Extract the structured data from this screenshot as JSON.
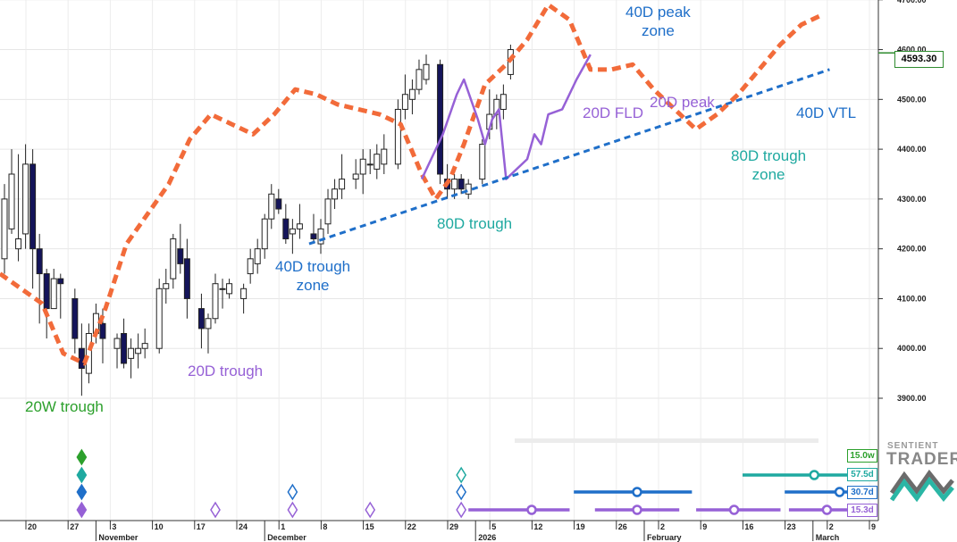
{
  "chart_data": {
    "type": "candlestick",
    "price_axis": {
      "ticks": [
        3900,
        4000,
        4100,
        4200,
        4300,
        4400,
        4500,
        4600,
        4700
      ],
      "tick_labels": [
        "3900.00",
        "4000.00",
        "4100.00",
        "4200.00",
        "4300.00",
        "4400.00",
        "4500.00",
        "4600.00",
        "4700.00"
      ],
      "ylim": [
        3840,
        4745
      ],
      "last_price_label": "4593.30",
      "last_price": 4593.3
    },
    "time_axis": {
      "day_ticks": [
        "20",
        "27",
        "3",
        "10",
        "17",
        "24",
        "1",
        "8",
        "15",
        "22",
        "29",
        "5",
        "12",
        "19",
        "26",
        "2",
        "9",
        "16",
        "23",
        "2",
        "9"
      ],
      "month_labels": [
        "November",
        "December",
        "2026",
        "February",
        "March"
      ],
      "month_start_indices": [
        2,
        6,
        11,
        15,
        19
      ]
    },
    "candles": [
      {
        "x": 0.0,
        "o": 4180,
        "h": 4330,
        "l": 4150,
        "c": 4300
      },
      {
        "x": 0.17,
        "o": 4240,
        "h": 4400,
        "l": 4230,
        "c": 4350
      },
      {
        "x": 0.33,
        "o": 4200,
        "h": 4390,
        "l": 4175,
        "c": 4220
      },
      {
        "x": 0.5,
        "o": 4230,
        "h": 4410,
        "l": 4200,
        "c": 4370
      },
      {
        "x": 0.67,
        "o": 4370,
        "h": 4400,
        "l": 4120,
        "c": 4200
      },
      {
        "x": 0.83,
        "o": 4200,
        "h": 4230,
        "l": 4050,
        "c": 4150
      },
      {
        "x": 1.0,
        "o": 4150,
        "h": 4160,
        "l": 4020,
        "c": 4080
      },
      {
        "x": 1.17,
        "o": 4080,
        "h": 4160,
        "l": 4080,
        "c": 4140
      },
      {
        "x": 1.33,
        "o": 4140,
        "h": 4150,
        "l": 4060,
        "c": 4130
      },
      {
        "x": 1.67,
        "o": 4100,
        "h": 4120,
        "l": 3990,
        "c": 4020
      },
      {
        "x": 1.83,
        "o": 4000,
        "h": 4050,
        "l": 3905,
        "c": 3960
      },
      {
        "x": 2.0,
        "o": 3950,
        "h": 4050,
        "l": 3930,
        "c": 4030
      },
      {
        "x": 2.17,
        "o": 4030,
        "h": 4090,
        "l": 4010,
        "c": 4070
      },
      {
        "x": 2.33,
        "o": 4050,
        "h": 4080,
        "l": 3970,
        "c": 4020
      },
      {
        "x": 2.67,
        "o": 4000,
        "h": 4030,
        "l": 3960,
        "c": 4020
      },
      {
        "x": 2.83,
        "o": 4030,
        "h": 4060,
        "l": 3960,
        "c": 3970
      },
      {
        "x": 3.0,
        "o": 3980,
        "h": 4020,
        "l": 3940,
        "c": 4000
      },
      {
        "x": 3.17,
        "o": 3990,
        "h": 4030,
        "l": 3960,
        "c": 4000
      },
      {
        "x": 3.33,
        "o": 4000,
        "h": 4040,
        "l": 3980,
        "c": 4010
      },
      {
        "x": 3.67,
        "o": 4000,
        "h": 4140,
        "l": 3990,
        "c": 4120
      },
      {
        "x": 3.83,
        "o": 4120,
        "h": 4160,
        "l": 4090,
        "c": 4130
      },
      {
        "x": 4.0,
        "o": 4140,
        "h": 4230,
        "l": 4120,
        "c": 4220
      },
      {
        "x": 4.17,
        "o": 4200,
        "h": 4250,
        "l": 4150,
        "c": 4170
      },
      {
        "x": 4.33,
        "o": 4180,
        "h": 4220,
        "l": 4060,
        "c": 4100
      },
      {
        "x": 4.67,
        "o": 4080,
        "h": 4110,
        "l": 4000,
        "c": 4040
      },
      {
        "x": 4.83,
        "o": 4040,
        "h": 4070,
        "l": 3990,
        "c": 4060
      },
      {
        "x": 5.0,
        "o": 4060,
        "h": 4150,
        "l": 4050,
        "c": 4130
      },
      {
        "x": 5.17,
        "o": 4120,
        "h": 4140,
        "l": 4080,
        "c": 4120
      },
      {
        "x": 5.33,
        "o": 4110,
        "h": 4140,
        "l": 4100,
        "c": 4130
      },
      {
        "x": 5.67,
        "o": 4100,
        "h": 4130,
        "l": 4070,
        "c": 4120
      },
      {
        "x": 5.83,
        "o": 4150,
        "h": 4200,
        "l": 4130,
        "c": 4180
      },
      {
        "x": 6.0,
        "o": 4170,
        "h": 4220,
        "l": 4150,
        "c": 4200
      },
      {
        "x": 6.17,
        "o": 4200,
        "h": 4270,
        "l": 4180,
        "c": 4260
      },
      {
        "x": 6.33,
        "o": 4260,
        "h": 4330,
        "l": 4240,
        "c": 4310
      },
      {
        "x": 6.5,
        "o": 4300,
        "h": 4320,
        "l": 4270,
        "c": 4280
      },
      {
        "x": 6.67,
        "o": 4260,
        "h": 4290,
        "l": 4210,
        "c": 4220
      },
      {
        "x": 6.83,
        "o": 4230,
        "h": 4260,
        "l": 4190,
        "c": 4240
      },
      {
        "x": 7.0,
        "o": 4240,
        "h": 4290,
        "l": 4220,
        "c": 4250
      },
      {
        "x": 7.33,
        "o": 4230,
        "h": 4270,
        "l": 4210,
        "c": 4220
      },
      {
        "x": 7.5,
        "o": 4210,
        "h": 4260,
        "l": 4190,
        "c": 4240
      },
      {
        "x": 7.67,
        "o": 4250,
        "h": 4320,
        "l": 4230,
        "c": 4300
      },
      {
        "x": 7.83,
        "o": 4300,
        "h": 4340,
        "l": 4280,
        "c": 4320
      },
      {
        "x": 8.0,
        "o": 4320,
        "h": 4390,
        "l": 4300,
        "c": 4340
      },
      {
        "x": 8.33,
        "o": 4340,
        "h": 4380,
        "l": 4320,
        "c": 4350
      },
      {
        "x": 8.5,
        "o": 4350,
        "h": 4400,
        "l": 4310,
        "c": 4380
      },
      {
        "x": 8.67,
        "o": 4370,
        "h": 4400,
        "l": 4350,
        "c": 4370
      },
      {
        "x": 8.83,
        "o": 4360,
        "h": 4410,
        "l": 4340,
        "c": 4390
      },
      {
        "x": 9.0,
        "o": 4370,
        "h": 4430,
        "l": 4350,
        "c": 4400
      },
      {
        "x": 9.33,
        "o": 4370,
        "h": 4500,
        "l": 4360,
        "c": 4480
      },
      {
        "x": 9.5,
        "o": 4480,
        "h": 4550,
        "l": 4460,
        "c": 4510
      },
      {
        "x": 9.67,
        "o": 4500,
        "h": 4540,
        "l": 4470,
        "c": 4520
      },
      {
        "x": 9.83,
        "o": 4520,
        "h": 4580,
        "l": 4510,
        "c": 4560
      },
      {
        "x": 10.0,
        "o": 4540,
        "h": 4590,
        "l": 4530,
        "c": 4570
      },
      {
        "x": 10.33,
        "o": 4570,
        "h": 4580,
        "l": 4330,
        "c": 4350
      },
      {
        "x": 10.5,
        "o": 4340,
        "h": 4370,
        "l": 4300,
        "c": 4320
      },
      {
        "x": 10.67,
        "o": 4320,
        "h": 4350,
        "l": 4300,
        "c": 4340
      },
      {
        "x": 10.83,
        "o": 4340,
        "h": 4350,
        "l": 4310,
        "c": 4320
      },
      {
        "x": 11.0,
        "o": 4310,
        "h": 4340,
        "l": 4300,
        "c": 4330
      },
      {
        "x": 11.33,
        "o": 4340,
        "h": 4420,
        "l": 4330,
        "c": 4410
      },
      {
        "x": 11.5,
        "o": 4440,
        "h": 4520,
        "l": 4420,
        "c": 4470
      },
      {
        "x": 11.67,
        "o": 4470,
        "h": 4510,
        "l": 4440,
        "c": 4500
      },
      {
        "x": 11.83,
        "o": 4480,
        "h": 4530,
        "l": 4460,
        "c": 4510
      },
      {
        "x": 12.0,
        "o": 4550,
        "h": 4610,
        "l": 4540,
        "c": 4600
      }
    ],
    "series": [
      {
        "name": "",
        "style": "dashed-orange",
        "points": [
          [
            0.0,
            4150
          ],
          [
            1.0,
            4090
          ],
          [
            1.5,
            3990
          ],
          [
            2.0,
            3970
          ],
          [
            2.5,
            4080
          ],
          [
            3.0,
            4210
          ],
          [
            4.0,
            4330
          ],
          [
            4.5,
            4420
          ],
          [
            5.0,
            4470
          ],
          [
            5.5,
            4450
          ],
          [
            6.0,
            4430
          ],
          [
            6.5,
            4470
          ],
          [
            7.0,
            4520
          ],
          [
            7.5,
            4510
          ],
          [
            8.0,
            4490
          ],
          [
            8.5,
            4480
          ],
          [
            9.0,
            4470
          ],
          [
            9.5,
            4450
          ],
          [
            10.0,
            4350
          ],
          [
            10.33,
            4300
          ],
          [
            10.67,
            4340
          ],
          [
            11.0,
            4410
          ],
          [
            11.5,
            4530
          ],
          [
            12.0,
            4570
          ],
          [
            12.5,
            4620
          ],
          [
            13.0,
            4690
          ],
          [
            13.5,
            4660
          ],
          [
            14.0,
            4560
          ],
          [
            14.5,
            4560
          ],
          [
            15.0,
            4570
          ],
          [
            15.5,
            4520
          ],
          [
            16.0,
            4480
          ],
          [
            16.5,
            4440
          ],
          [
            17.0,
            4470
          ],
          [
            17.5,
            4510
          ],
          [
            18.0,
            4560
          ],
          [
            18.5,
            4610
          ],
          [
            19.0,
            4650
          ],
          [
            19.5,
            4670
          ]
        ]
      },
      {
        "name": "20D FLD",
        "style": "solid-purple",
        "points": [
          [
            10.0,
            4340
          ],
          [
            10.5,
            4430
          ],
          [
            10.83,
            4510
          ],
          [
            11.0,
            4540
          ],
          [
            11.33,
            4460
          ],
          [
            11.5,
            4410
          ],
          [
            11.67,
            4460
          ],
          [
            11.83,
            4480
          ],
          [
            12.0,
            4340
          ],
          [
            12.5,
            4380
          ],
          [
            12.67,
            4430
          ],
          [
            12.83,
            4410
          ],
          [
            13.0,
            4470
          ],
          [
            13.33,
            4480
          ],
          [
            13.67,
            4540
          ],
          [
            14.0,
            4590
          ]
        ]
      },
      {
        "name": "",
        "style": "dashed-blue",
        "points": [
          [
            7.33,
            4210
          ],
          [
            19.67,
            4560
          ]
        ]
      }
    ],
    "annotations": [
      {
        "text": "40D peak\nzone",
        "color": "blue"
      },
      {
        "text": "20D FLD",
        "color": "purple"
      },
      {
        "text": "20D peak",
        "color": "purple"
      },
      {
        "text": "40D VTL",
        "color": "blue"
      },
      {
        "text": "80D trough\nzone",
        "color": "teal"
      },
      {
        "text": "80D trough",
        "color": "teal"
      },
      {
        "text": "40D trough\nzone",
        "color": "blue"
      },
      {
        "text": "20D trough",
        "color": "purple"
      },
      {
        "text": "20W trough",
        "color": "green"
      }
    ],
    "cycle_labels": [
      {
        "text": "15.0w",
        "color": "#2ca02c"
      },
      {
        "text": "57.5d",
        "color": "#1fa9a0"
      },
      {
        "text": "30.7d",
        "color": "#1f6fc9"
      },
      {
        "text": "15.3d",
        "color": "#9661d6"
      }
    ],
    "markers": [
      {
        "x": 1.83,
        "type": "diamond-filled",
        "color": "#2ca02c",
        "row": 0
      },
      {
        "x": 1.83,
        "type": "diamond-filled",
        "color": "#1fa9a0",
        "row": 1
      },
      {
        "x": 1.83,
        "type": "diamond-filled",
        "color": "#1f6fc9",
        "row": 2
      },
      {
        "x": 1.83,
        "type": "diamond-filled",
        "color": "#9661d6",
        "row": 3
      },
      {
        "x": 5.0,
        "type": "diamond-open",
        "color": "#9661d6",
        "row": 3
      },
      {
        "x": 6.83,
        "type": "diamond-open",
        "color": "#1f6fc9",
        "row": 2
      },
      {
        "x": 6.83,
        "type": "diamond-open",
        "color": "#9661d6",
        "row": 3
      },
      {
        "x": 8.67,
        "type": "diamond-open",
        "color": "#9661d6",
        "row": 3
      },
      {
        "x": 10.83,
        "type": "diamond-open",
        "color": "#1fa9a0",
        "row": 1
      },
      {
        "x": 10.83,
        "type": "diamond-open",
        "color": "#1f6fc9",
        "row": 2
      },
      {
        "x": 10.83,
        "type": "diamond-open",
        "color": "#9661d6",
        "row": 3
      }
    ],
    "projection_bars": [
      {
        "row": 1,
        "color": "#1fa9a0",
        "x0": 17.5,
        "x1": 20.0,
        "dot": 19.2
      },
      {
        "row": 2,
        "color": "#1f6fc9",
        "x0": 13.5,
        "x1": 16.3,
        "dot": 15.0
      },
      {
        "row": 2,
        "color": "#1f6fc9",
        "x0": 18.5,
        "x1": 20.0,
        "dot": 19.8
      },
      {
        "row": 3,
        "color": "#9661d6",
        "x0": 11.0,
        "x1": 13.4,
        "dot": 12.5
      },
      {
        "row": 3,
        "color": "#9661d6",
        "x0": 14.0,
        "x1": 16.0,
        "dot": 15.0
      },
      {
        "row": 3,
        "color": "#9661d6",
        "x0": 16.4,
        "x1": 18.4,
        "dot": 17.3
      },
      {
        "row": 3,
        "color": "#9661d6",
        "x0": 18.6,
        "x1": 20.0,
        "dot": 19.5
      }
    ],
    "grid": true,
    "legend": "none"
  },
  "logo": {
    "line1": "SENTIENT",
    "line2": "TRADER"
  }
}
